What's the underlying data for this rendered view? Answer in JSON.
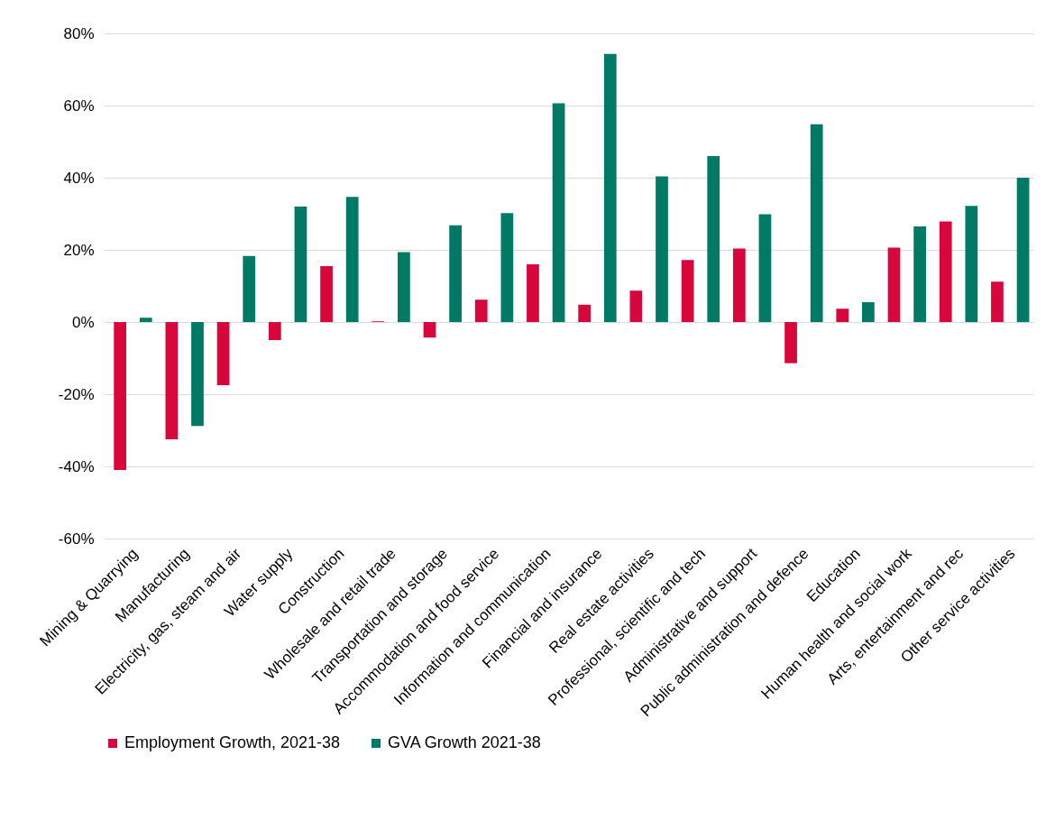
{
  "chart_data": {
    "type": "bar",
    "categories": [
      "Mining & Quarrying",
      "Manufacturing",
      "Electricity, gas, steam and air",
      "Water supply",
      "Construction",
      "Wholesale and retail trade",
      "Transportation and storage",
      "Accommodation and food service",
      "Information and communication",
      "Financial and insurance",
      "Real estate activities",
      "Professional, scientific and tech",
      "Administrative and support",
      "Public administration and defence",
      "Education",
      "Human health and social work",
      "Arts, entertainment and rec",
      "Other service activities"
    ],
    "series": [
      {
        "name": "Employment Growth, 2021-38",
        "color": "#d7063b",
        "values": [
          -41,
          -32.5,
          -17.5,
          -5,
          15.5,
          0.2,
          -4.3,
          6.2,
          16,
          4.8,
          8.7,
          17.2,
          20.4,
          -11.4,
          3.7,
          20.6,
          27.9,
          11.2
        ]
      },
      {
        "name": "GVA Growth 2021-38",
        "color": "#007a64",
        "values": [
          1.2,
          -28.8,
          18.3,
          32,
          34.7,
          19.4,
          26.8,
          30.2,
          60.6,
          74.3,
          40.4,
          46,
          29.9,
          54.8,
          5.5,
          26.5,
          32.2,
          40
        ]
      }
    ],
    "ylim": [
      -60,
      80
    ],
    "yticks": [
      {
        "value": -60,
        "label": "-60%"
      },
      {
        "value": -40,
        "label": "-40%"
      },
      {
        "value": -20,
        "label": "-20%"
      },
      {
        "value": 0,
        "label": "0%"
      },
      {
        "value": 20,
        "label": "20%"
      },
      {
        "value": 40,
        "label": "40%"
      },
      {
        "value": 60,
        "label": "60%"
      },
      {
        "value": 80,
        "label": "80%"
      }
    ],
    "grid": "y",
    "legend": "bottom"
  }
}
